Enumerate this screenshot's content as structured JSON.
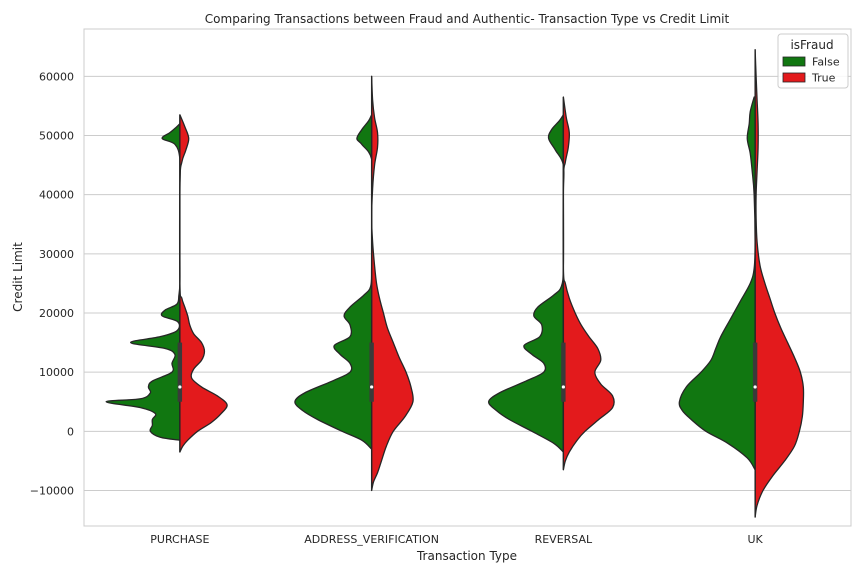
{
  "chart_data": {
    "type": "violin",
    "title": "Comparing Transactions between Fraud and Authentic- Transaction Type vs Credit Limit",
    "xlabel": "Transaction Type",
    "ylabel": "Credit Limit",
    "categories": [
      "PURCHASE",
      "ADDRESS_VERIFICATION",
      "REVERSAL",
      "UK"
    ],
    "ylim": [
      -16000,
      68000
    ],
    "yticks": [
      -10000,
      0,
      10000,
      20000,
      30000,
      40000,
      50000,
      60000
    ],
    "ytick_labels": [
      "−10000",
      "0",
      "10000",
      "20000",
      "30000",
      "40000",
      "50000",
      "60000"
    ],
    "grid": true,
    "split": true,
    "legend": {
      "title": "isFraud",
      "position": "top-right",
      "entries": [
        {
          "label": "False",
          "color": "#117711"
        },
        {
          "label": "True",
          "color": "#e31a1c"
        }
      ]
    },
    "inner_box": {
      "q1": 5000,
      "median": 7500,
      "q3": 15000
    },
    "series": [
      {
        "name": "False",
        "side": "left",
        "color": "#117711",
        "violins": [
          {
            "category": "PURCHASE",
            "profile": [
              [
                -1500,
                0
              ],
              [
                -1000,
                20
              ],
              [
                0,
                30
              ],
              [
                1000,
                28
              ],
              [
                2000,
                28
              ],
              [
                3000,
                25
              ],
              [
                4000,
                40
              ],
              [
                5000,
                75
              ],
              [
                5500,
                40
              ],
              [
                6500,
                30
              ],
              [
                7500,
                32
              ],
              [
                8500,
                28
              ],
              [
                10000,
                8
              ],
              [
                11500,
                8
              ],
              [
                13000,
                5
              ],
              [
                14000,
                15
              ],
              [
                15000,
                50
              ],
              [
                16000,
                20
              ],
              [
                17000,
                3
              ],
              [
                18500,
                2
              ],
              [
                19500,
                18
              ],
              [
                20500,
                15
              ],
              [
                21500,
                3
              ],
              [
                23000,
                1
              ],
              [
                25000,
                0
              ],
              [
                30000,
                0
              ],
              [
                40000,
                0
              ],
              [
                46000,
                0
              ],
              [
                48500,
                5
              ],
              [
                49500,
                18
              ],
              [
                50500,
                10
              ],
              [
                51500,
                3
              ],
              [
                52000,
                0
              ]
            ]
          },
          {
            "category": "ADDRESS_VERIFICATION",
            "profile": [
              [
                -3000,
                0
              ],
              [
                -1500,
                10
              ],
              [
                0,
                30
              ],
              [
                2000,
                55
              ],
              [
                3500,
                70
              ],
              [
                5000,
                78
              ],
              [
                6500,
                68
              ],
              [
                8500,
                40
              ],
              [
                10000,
                22
              ],
              [
                11500,
                22
              ],
              [
                13000,
                32
              ],
              [
                14500,
                38
              ],
              [
                16000,
                22
              ],
              [
                18000,
                22
              ],
              [
                19500,
                28
              ],
              [
                21000,
                22
              ],
              [
                23000,
                8
              ],
              [
                24500,
                1
              ],
              [
                28000,
                0
              ],
              [
                40000,
                0
              ],
              [
                46000,
                0
              ],
              [
                48500,
                10
              ],
              [
                49500,
                15
              ],
              [
                51000,
                10
              ],
              [
                52500,
                3
              ],
              [
                53500,
                0
              ]
            ]
          },
          {
            "category": "REVERSAL",
            "profile": [
              [
                -3500,
                0
              ],
              [
                -2000,
                10
              ],
              [
                0,
                32
              ],
              [
                2000,
                55
              ],
              [
                3500,
                68
              ],
              [
                5000,
                76
              ],
              [
                6500,
                65
              ],
              [
                8500,
                38
              ],
              [
                10000,
                20
              ],
              [
                11500,
                20
              ],
              [
                13000,
                32
              ],
              [
                14500,
                40
              ],
              [
                16000,
                24
              ],
              [
                18000,
                22
              ],
              [
                19500,
                30
              ],
              [
                21000,
                26
              ],
              [
                23000,
                10
              ],
              [
                24500,
                2
              ],
              [
                28000,
                0
              ],
              [
                40000,
                0
              ],
              [
                45000,
                0
              ],
              [
                47500,
                8
              ],
              [
                49500,
                15
              ],
              [
                51000,
                12
              ],
              [
                52500,
                4
              ],
              [
                53500,
                0
              ]
            ]
          },
          {
            "category": "UK",
            "profile": [
              [
                -6500,
                0
              ],
              [
                -4500,
                8
              ],
              [
                -2000,
                28
              ],
              [
                0,
                50
              ],
              [
                2000,
                65
              ],
              [
                3500,
                74
              ],
              [
                5000,
                77
              ],
              [
                7500,
                70
              ],
              [
                10000,
                55
              ],
              [
                12000,
                45
              ],
              [
                14000,
                40
              ],
              [
                16000,
                35
              ],
              [
                19000,
                25
              ],
              [
                22000,
                15
              ],
              [
                25000,
                5
              ],
              [
                27500,
                1
              ],
              [
                32000,
                0
              ],
              [
                40000,
                1
              ],
              [
                44000,
                3
              ],
              [
                47000,
                5
              ],
              [
                49500,
                8
              ],
              [
                52000,
                6
              ],
              [
                54000,
                5
              ],
              [
                56500,
                1
              ]
            ]
          }
        ]
      },
      {
        "name": "True",
        "side": "right",
        "color": "#e31a1c",
        "violins": [
          {
            "category": "PURCHASE",
            "profile": [
              [
                -3500,
                0
              ],
              [
                -2500,
                3
              ],
              [
                -1500,
                8
              ],
              [
                0,
                18
              ],
              [
                1500,
                32
              ],
              [
                3000,
                42
              ],
              [
                4500,
                48
              ],
              [
                6000,
                38
              ],
              [
                7500,
                22
              ],
              [
                9000,
                12
              ],
              [
                10500,
                14
              ],
              [
                12000,
                22
              ],
              [
                13500,
                25
              ],
              [
                15000,
                22
              ],
              [
                16500,
                14
              ],
              [
                18000,
                10
              ],
              [
                19500,
                8
              ],
              [
                21000,
                5
              ],
              [
                22500,
                2
              ],
              [
                25000,
                0
              ],
              [
                42000,
                0
              ],
              [
                45500,
                2
              ],
              [
                47500,
                6
              ],
              [
                49500,
                9
              ],
              [
                51500,
                5
              ],
              [
                53500,
                0
              ]
            ]
          },
          {
            "category": "ADDRESS_VERIFICATION",
            "profile": [
              [
                -10000,
                0
              ],
              [
                -8500,
                2
              ],
              [
                -7000,
                6
              ],
              [
                -5000,
                10
              ],
              [
                -2500,
                15
              ],
              [
                0,
                22
              ],
              [
                2500,
                34
              ],
              [
                5000,
                42
              ],
              [
                7500,
                40
              ],
              [
                10000,
                35
              ],
              [
                12500,
                28
              ],
              [
                15000,
                22
              ],
              [
                17500,
                16
              ],
              [
                20000,
                12
              ],
              [
                22500,
                8
              ],
              [
                25000,
                5
              ],
              [
                28000,
                3
              ],
              [
                32000,
                1
              ],
              [
                36000,
                0
              ],
              [
                41000,
                1
              ],
              [
                45000,
                3
              ],
              [
                48000,
                6
              ],
              [
                50500,
                6
              ],
              [
                53000,
                3
              ],
              [
                56000,
                1
              ],
              [
                60000,
                0
              ]
            ]
          },
          {
            "category": "REVERSAL",
            "profile": [
              [
                -6500,
                0
              ],
              [
                -5000,
                2
              ],
              [
                -3500,
                6
              ],
              [
                -1500,
                14
              ],
              [
                0,
                22
              ],
              [
                2000,
                36
              ],
              [
                4000,
                50
              ],
              [
                6000,
                50
              ],
              [
                8000,
                38
              ],
              [
                10000,
                32
              ],
              [
                12000,
                38
              ],
              [
                14000,
                35
              ],
              [
                16000,
                26
              ],
              [
                18000,
                18
              ],
              [
                20000,
                12
              ],
              [
                22500,
                6
              ],
              [
                25000,
                2
              ],
              [
                27500,
                0
              ],
              [
                42500,
                0
              ],
              [
                45500,
                2
              ],
              [
                48000,
                5
              ],
              [
                50500,
                6
              ],
              [
                53000,
                3
              ],
              [
                56500,
                0
              ]
            ]
          },
          {
            "category": "UK",
            "profile": [
              [
                -14500,
                0
              ],
              [
                -12500,
                2
              ],
              [
                -10000,
                8
              ],
              [
                -7500,
                18
              ],
              [
                -5000,
                30
              ],
              [
                -2500,
                40
              ],
              [
                0,
                45
              ],
              [
                2500,
                48
              ],
              [
                5000,
                49
              ],
              [
                7500,
                49
              ],
              [
                10000,
                46
              ],
              [
                12500,
                40
              ],
              [
                15000,
                33
              ],
              [
                17500,
                26
              ],
              [
                20000,
                20
              ],
              [
                22500,
                15
              ],
              [
                25000,
                10
              ],
              [
                28000,
                5
              ],
              [
                32000,
                2
              ],
              [
                36000,
                1
              ],
              [
                40000,
                1
              ],
              [
                44000,
                2
              ],
              [
                48000,
                3
              ],
              [
                52000,
                3
              ],
              [
                56000,
                2
              ],
              [
                60000,
                1
              ],
              [
                64500,
                0
              ]
            ]
          }
        ]
      }
    ]
  }
}
